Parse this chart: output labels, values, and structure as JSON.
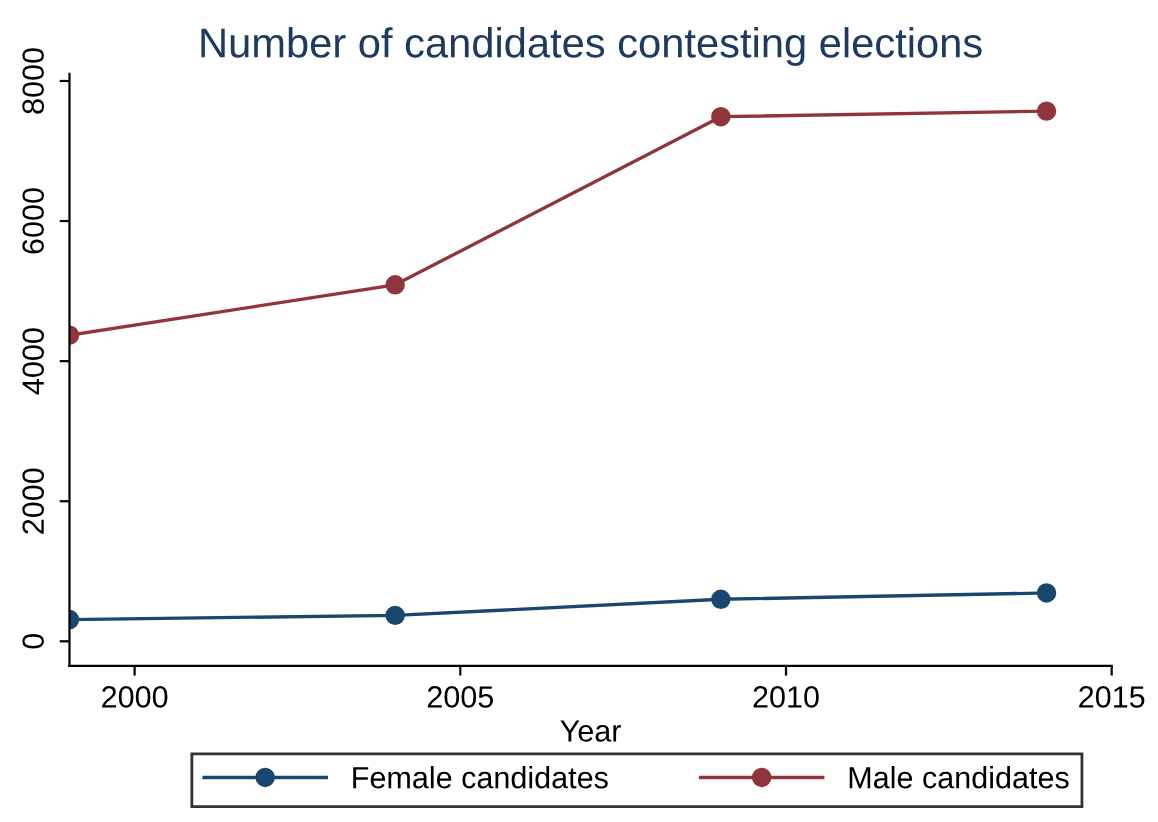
{
  "chart_data": {
    "type": "line",
    "title": "Number of candidates contesting elections",
    "xlabel": "Year",
    "x": [
      1999,
      2004,
      2009,
      2014
    ],
    "series": [
      {
        "name": "Female candidates",
        "color": "#1a476f",
        "values": [
          310,
          370,
          600,
          690
        ]
      },
      {
        "name": "Male candidates",
        "color": "#90353b",
        "values": [
          4370,
          5090,
          7490,
          7570
        ]
      }
    ],
    "xlim": [
      1999,
      2015
    ],
    "xticks": [
      2000,
      2005,
      2010,
      2015
    ],
    "ylim": [
      -350,
      8100
    ],
    "yticks": [
      0,
      2000,
      4000,
      6000,
      8000
    ],
    "marker": "circle",
    "line_style": "solid",
    "grid": false,
    "legend": "bottom"
  }
}
